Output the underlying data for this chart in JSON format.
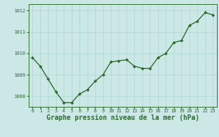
{
  "x": [
    0,
    1,
    2,
    3,
    4,
    5,
    6,
    7,
    8,
    9,
    10,
    11,
    12,
    13,
    14,
    15,
    16,
    17,
    18,
    19,
    20,
    21,
    22,
    23
  ],
  "y": [
    1009.8,
    1009.4,
    1008.8,
    1008.2,
    1007.7,
    1007.7,
    1008.1,
    1008.3,
    1008.7,
    1009.0,
    1009.6,
    1009.65,
    1009.7,
    1009.4,
    1009.3,
    1009.3,
    1009.8,
    1010.0,
    1010.5,
    1010.6,
    1011.3,
    1011.5,
    1011.9,
    1011.8
  ],
  "ylim": [
    1007.5,
    1012.3
  ],
  "yticks": [
    1008,
    1009,
    1010,
    1011,
    1012
  ],
  "xticks": [
    0,
    1,
    2,
    3,
    4,
    5,
    6,
    7,
    8,
    9,
    10,
    11,
    12,
    13,
    14,
    15,
    16,
    17,
    18,
    19,
    20,
    21,
    22,
    23
  ],
  "line_color": "#2d6a2d",
  "marker": "D",
  "marker_size": 2.2,
  "bg_color": "#cce8e6",
  "grid_color": "#aad4d0",
  "xlabel": "Graphe pression niveau de la mer (hPa)",
  "xlabel_color": "#2d6a2d",
  "tick_color": "#2d6a2d",
  "tick_label_color": "#2d6a2d",
  "border_color": "#2d6a2d",
  "linewidth": 1.0,
  "xlabel_fontsize": 7.0,
  "tick_fontsize": 5.0
}
